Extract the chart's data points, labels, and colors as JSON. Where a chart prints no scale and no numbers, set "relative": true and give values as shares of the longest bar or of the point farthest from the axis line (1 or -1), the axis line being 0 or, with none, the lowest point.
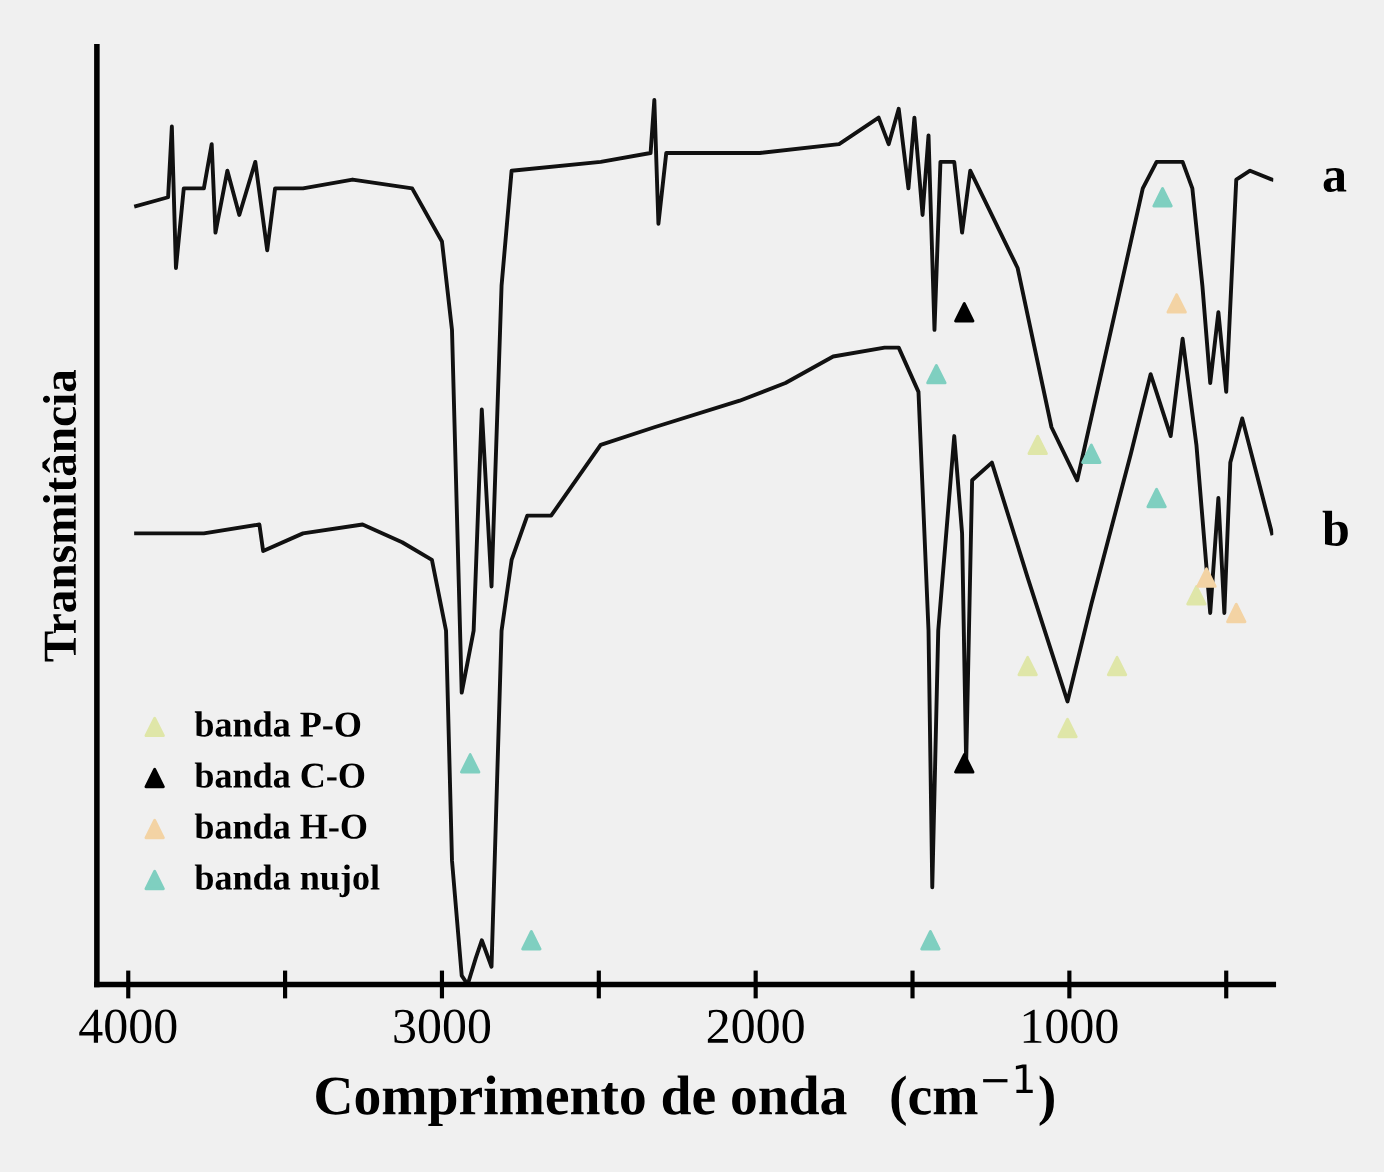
{
  "chart_data": {
    "type": "line",
    "relative": true,
    "xlabel": "Comprimento de onda   (cm$^{−1}$)",
    "ylabel": "Transmitância",
    "xlim": [
      4100,
      350
    ],
    "xticks": [
      4000,
      {
        "value": 3500,
        "label": null
      },
      3000,
      {
        "value": 2500,
        "label": null
      },
      2000,
      {
        "value": 1500,
        "label": null
      },
      1000,
      {
        "value": 500,
        "label": null
      }
    ],
    "tick_labels": "x",
    "grid": false,
    "legend": "bottom left",
    "series": [
      {
        "name": "a",
        "color": "#111111",
        "x": [
          3975,
          3873,
          3861,
          3848,
          3823,
          3759,
          3734,
          3722,
          3684,
          3646,
          3595,
          3557,
          3532,
          3443,
          3285,
          3095,
          3000,
          2968,
          2937,
          2899,
          2873,
          2842,
          2810,
          2778,
          2494,
          2335,
          2323,
          2310,
          2285,
          1987,
          1734,
          1608,
          1576,
          1544,
          1513,
          1494,
          1468,
          1449,
          1430,
          1411,
          1367,
          1342,
          1316,
          1165,
          1057,
          975,
          848,
          766,
          722,
          639,
          608,
          576,
          551,
          525,
          500,
          468,
          424,
          354
        ],
        "values": [
          0.88,
          0.89,
          0.97,
          0.81,
          0.9,
          0.9,
          0.95,
          0.85,
          0.92,
          0.87,
          0.93,
          0.83,
          0.9,
          0.9,
          0.91,
          0.9,
          0.84,
          0.74,
          0.33,
          0.4,
          0.65,
          0.45,
          0.79,
          0.92,
          0.93,
          0.94,
          1.0,
          0.86,
          0.94,
          0.94,
          0.95,
          0.98,
          0.95,
          0.99,
          0.9,
          0.98,
          0.87,
          0.96,
          0.74,
          0.93,
          0.93,
          0.85,
          0.92,
          0.81,
          0.63,
          0.57,
          0.77,
          0.9,
          0.93,
          0.93,
          0.9,
          0.79,
          0.68,
          0.76,
          0.67,
          0.91,
          0.92,
          0.91
        ]
      },
      {
        "name": "b",
        "color": "#111111",
        "x": [
          3975,
          3759,
          3582,
          3570,
          3443,
          3253,
          3127,
          3032,
          2987,
          2968,
          2937,
          2918,
          2892,
          2873,
          2842,
          2810,
          2778,
          2728,
          2652,
          2494,
          2323,
          2051,
          1905,
          1753,
          1589,
          1544,
          1481,
          1449,
          1437,
          1418,
          1367,
          1342,
          1329,
          1310,
          1247,
          1133,
          1006,
          930,
          804,
          741,
          677,
          639,
          595,
          551,
          525,
          506,
          487,
          449,
          405,
          354
        ],
        "values": [
          0.51,
          0.51,
          0.52,
          0.49,
          0.51,
          0.52,
          0.5,
          0.48,
          0.4,
          0.14,
          0.01,
          0.0,
          0.03,
          0.05,
          0.02,
          0.4,
          0.48,
          0.53,
          0.53,
          0.61,
          0.63,
          0.66,
          0.68,
          0.71,
          0.72,
          0.72,
          0.67,
          0.4,
          0.11,
          0.4,
          0.62,
          0.51,
          0.25,
          0.57,
          0.59,
          0.46,
          0.32,
          0.43,
          0.6,
          0.69,
          0.62,
          0.73,
          0.61,
          0.42,
          0.55,
          0.42,
          0.59,
          0.64,
          0.58,
          0.51
        ]
      },
      {
        "name": "banda P-O",
        "type": "scatter",
        "marker": "triangle",
        "color": "#dfe6a8",
        "x": [
          1101,
          1133,
          1006,
          848,
          595
        ],
        "values": [
          0.61,
          0.36,
          0.29,
          0.36,
          0.44
        ]
      },
      {
        "name": "banda C-O",
        "type": "scatter",
        "marker": "triangle",
        "color": "#000000",
        "x": [
          1335,
          1335
        ],
        "values": [
          0.76,
          0.25
        ]
      },
      {
        "name": "banda H-O",
        "type": "scatter",
        "marker": "triangle",
        "color": "#f3d3a4",
        "x": [
          658,
          563,
          468
        ],
        "values": [
          0.77,
          0.46,
          0.42
        ]
      },
      {
        "name": "banda nujol",
        "type": "scatter",
        "marker": "triangle",
        "color": "#7fcfc0",
        "x": [
          2910,
          2715,
          1443,
          1424,
          930,
          722,
          703
        ],
        "values": [
          0.25,
          0.05,
          0.05,
          0.69,
          0.6,
          0.55,
          0.89
        ]
      }
    ]
  }
}
